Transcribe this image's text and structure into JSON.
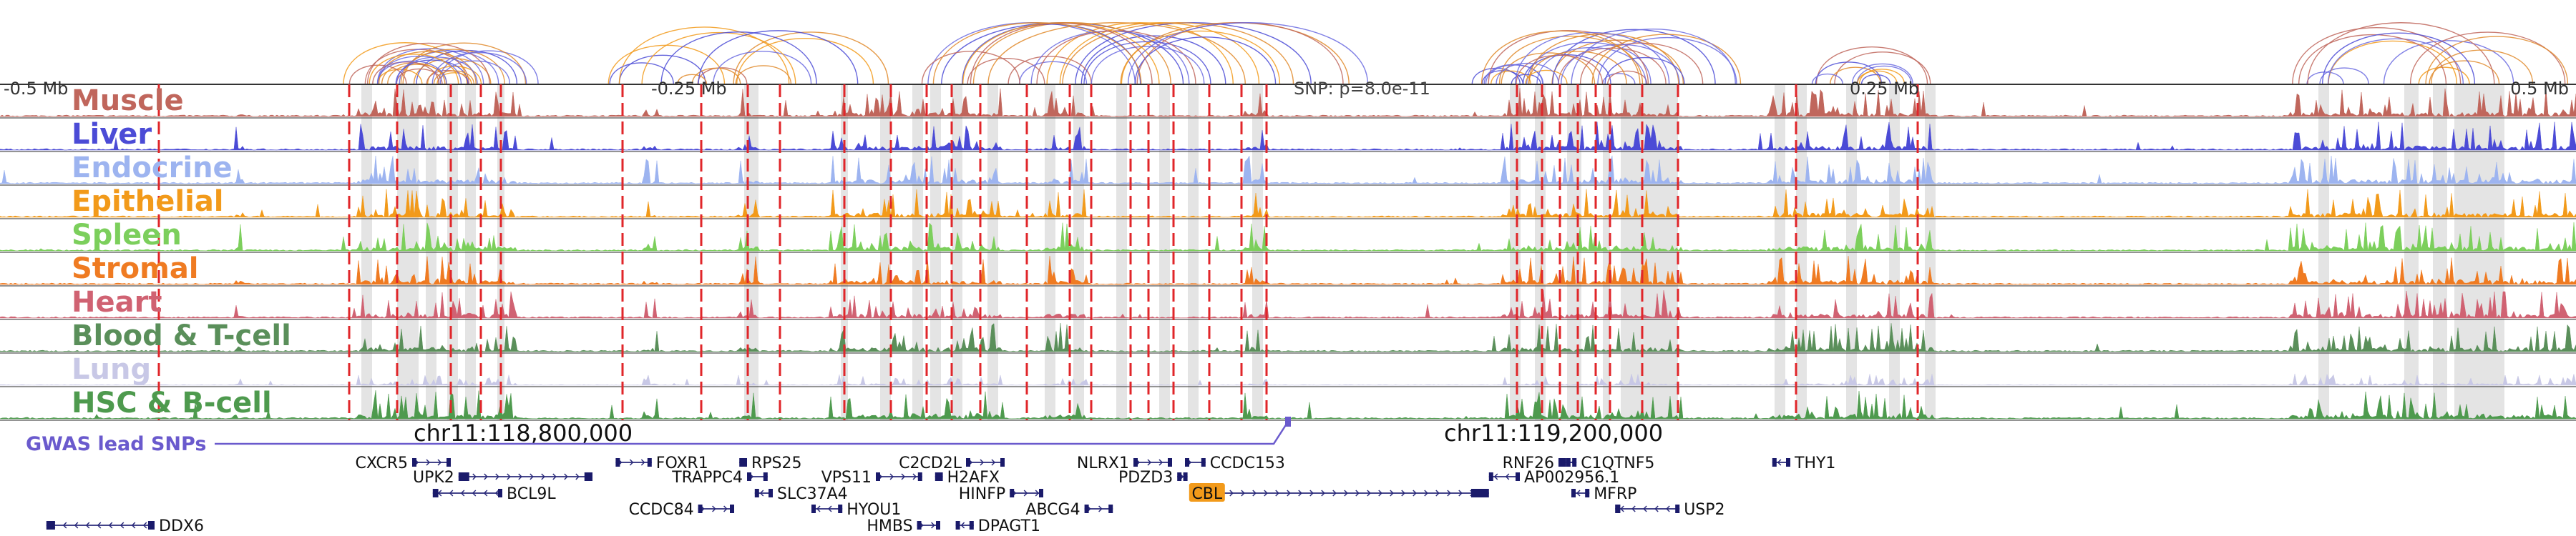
{
  "chart_data": {
    "type": "area",
    "x_ticks": [
      "-0.5 Mb",
      "-0.25 Mb",
      "0.25 Mb",
      "0.5 Mb"
    ],
    "snp_label": "SNP: p=8.0e-11",
    "coordinate_labels": [
      "chr11:118,800,000",
      "chr11:119,200,000"
    ],
    "gwas_label": "GWAS lead SNPs",
    "tracks": [
      {
        "name": "Muscle",
        "color": "#c0665c"
      },
      {
        "name": "Liver",
        "color": "#4b4bd6"
      },
      {
        "name": "Endocrine",
        "color": "#9db4f0"
      },
      {
        "name": "Epithelial",
        "color": "#f29a1a"
      },
      {
        "name": "Spleen",
        "color": "#7ccf5c"
      },
      {
        "name": "Stromal",
        "color": "#ef7b22"
      },
      {
        "name": "Heart",
        "color": "#d06272"
      },
      {
        "name": "Blood & T-cell",
        "color": "#5a8f5a"
      },
      {
        "name": "Lung",
        "color": "#c8c8e6"
      },
      {
        "name": "HSC & B-cell",
        "color": "#4e9a4e"
      }
    ],
    "genes": [
      {
        "name": "CXCR5",
        "row": 0,
        "start": 0.16,
        "end": 0.175,
        "strand": "+",
        "label_side": "left"
      },
      {
        "name": "FOXR1",
        "row": 0,
        "start": 0.239,
        "end": 0.253,
        "strand": "+",
        "label_side": "right"
      },
      {
        "name": "RPS25",
        "row": 0,
        "start": 0.287,
        "end": 0.29,
        "strand": "-",
        "label_side": "right"
      },
      {
        "name": "C2CD2L",
        "row": 0,
        "start": 0.375,
        "end": 0.39,
        "strand": "+",
        "label_side": "left"
      },
      {
        "name": "NLRX1",
        "row": 0,
        "start": 0.44,
        "end": 0.455,
        "strand": "+",
        "label_side": "left"
      },
      {
        "name": "CCDC153",
        "row": 0,
        "start": 0.46,
        "end": 0.468,
        "strand": "+",
        "label_side": "right"
      },
      {
        "name": "RNF26",
        "row": 0,
        "start": 0.605,
        "end": 0.608,
        "strand": "+",
        "label_side": "left"
      },
      {
        "name": "C1QTNF5",
        "row": 0,
        "start": 0.608,
        "end": 0.612,
        "strand": "-",
        "label_side": "right"
      },
      {
        "name": "THY1",
        "row": 0,
        "start": 0.688,
        "end": 0.695,
        "strand": "-",
        "label_side": "right"
      },
      {
        "name": "UPK2",
        "row": 1,
        "start": 0.178,
        "end": 0.23,
        "strand": "+",
        "label_side": "left"
      },
      {
        "name": "TRAPPC4",
        "row": 1,
        "start": 0.29,
        "end": 0.298,
        "strand": "+",
        "label_side": "left"
      },
      {
        "name": "VPS11",
        "row": 1,
        "start": 0.34,
        "end": 0.358,
        "strand": "+",
        "label_side": "left"
      },
      {
        "name": "H2AFX",
        "row": 1,
        "start": 0.363,
        "end": 0.366,
        "strand": "+",
        "label_side": "right"
      },
      {
        "name": "PDZD3",
        "row": 1,
        "start": 0.457,
        "end": 0.461,
        "strand": "+",
        "label_side": "left"
      },
      {
        "name": "AP002956.1",
        "row": 1,
        "start": 0.578,
        "end": 0.59,
        "strand": "-",
        "label_side": "right"
      },
      {
        "name": "BCL9L",
        "row": 2,
        "start": 0.168,
        "end": 0.195,
        "strand": "-",
        "label_side": "right"
      },
      {
        "name": "SLC37A4",
        "row": 2,
        "start": 0.293,
        "end": 0.3,
        "strand": "-",
        "label_side": "right"
      },
      {
        "name": "HINFP",
        "row": 2,
        "start": 0.392,
        "end": 0.405,
        "strand": "+",
        "label_side": "left"
      },
      {
        "name": "CBL",
        "row": 2,
        "start": 0.463,
        "end": 0.578,
        "strand": "+",
        "label_side": "left",
        "highlight": true
      },
      {
        "name": "MFRP",
        "row": 2,
        "start": 0.61,
        "end": 0.617,
        "strand": "-",
        "label_side": "right"
      },
      {
        "name": "CCDC84",
        "row": 3,
        "start": 0.271,
        "end": 0.285,
        "strand": "+",
        "label_side": "left"
      },
      {
        "name": "HYOU1",
        "row": 3,
        "start": 0.315,
        "end": 0.327,
        "strand": "-",
        "label_side": "right"
      },
      {
        "name": "ABCG4",
        "row": 3,
        "start": 0.421,
        "end": 0.432,
        "strand": "+",
        "label_side": "left"
      },
      {
        "name": "USP2",
        "row": 3,
        "start": 0.627,
        "end": 0.652,
        "strand": "-",
        "label_side": "right"
      },
      {
        "name": "HMBS",
        "row": 4,
        "start": 0.356,
        "end": 0.365,
        "strand": "+",
        "label_side": "left"
      },
      {
        "name": "DPAGT1",
        "row": 4,
        "start": 0.371,
        "end": 0.378,
        "strand": "-",
        "label_side": "right"
      },
      {
        "name": "DDX6",
        "row": 4,
        "start": 0.018,
        "end": 0.06,
        "strand": "-",
        "label_side": "right"
      }
    ]
  }
}
